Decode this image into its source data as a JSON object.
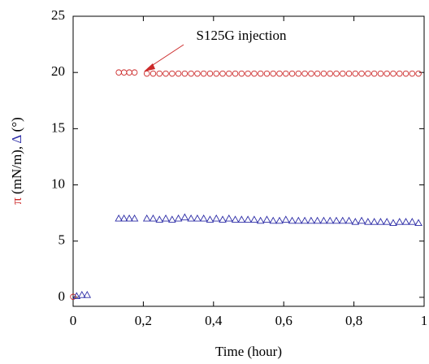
{
  "chart_data": {
    "type": "scatter",
    "xlabel": "Time (hour)",
    "ylabel": [
      "π",
      " (mN/m), ",
      "Δ",
      " (°)"
    ],
    "ylabel_colors": [
      "#cc2a2a",
      "#000000",
      "#2b2ba6",
      "#000000"
    ],
    "annotation": "S125G injection",
    "annotation_color": "#cc2a2a",
    "xlim": [
      0,
      1
    ],
    "ylim": [
      -0.8,
      25
    ],
    "xticks": [
      {
        "value": 0,
        "label": "0"
      },
      {
        "value": 0.2,
        "label": "0,2"
      },
      {
        "value": 0.4,
        "label": "0,4"
      },
      {
        "value": 0.6,
        "label": "0,6"
      },
      {
        "value": 0.8,
        "label": "0,8"
      },
      {
        "value": 1,
        "label": "1"
      }
    ],
    "yticks": [
      0,
      5,
      10,
      15,
      20,
      25
    ],
    "series": [
      {
        "color": "#cc2a2a",
        "marker": "circle",
        "x": [
          0.0,
          0.13,
          0.145,
          0.16,
          0.175,
          0.21,
          0.228,
          0.246,
          0.264,
          0.282,
          0.3,
          0.318,
          0.336,
          0.354,
          0.372,
          0.39,
          0.408,
          0.426,
          0.444,
          0.462,
          0.48,
          0.498,
          0.516,
          0.534,
          0.552,
          0.57,
          0.588,
          0.606,
          0.624,
          0.642,
          0.66,
          0.678,
          0.696,
          0.714,
          0.732,
          0.75,
          0.768,
          0.786,
          0.804,
          0.822,
          0.84,
          0.858,
          0.876,
          0.894,
          0.912,
          0.93,
          0.948,
          0.966,
          0.984
        ],
        "values": [
          0.05,
          20,
          20,
          20,
          20,
          19.9,
          19.9,
          19.9,
          19.9,
          19.9,
          19.9,
          19.9,
          19.9,
          19.9,
          19.9,
          19.9,
          19.9,
          19.9,
          19.9,
          19.9,
          19.9,
          19.9,
          19.9,
          19.9,
          19.9,
          19.9,
          19.9,
          19.9,
          19.9,
          19.9,
          19.9,
          19.9,
          19.9,
          19.9,
          19.9,
          19.9,
          19.9,
          19.9,
          19.9,
          19.9,
          19.9,
          19.9,
          19.9,
          19.9,
          19.9,
          19.9,
          19.9,
          19.9,
          19.9
        ]
      },
      {
        "color": "#2b2ba6",
        "marker": "triangle",
        "x": [
          0.01,
          0.025,
          0.04,
          0.13,
          0.145,
          0.16,
          0.175,
          0.21,
          0.228,
          0.246,
          0.264,
          0.282,
          0.3,
          0.318,
          0.336,
          0.354,
          0.372,
          0.39,
          0.408,
          0.426,
          0.444,
          0.462,
          0.48,
          0.498,
          0.516,
          0.534,
          0.552,
          0.57,
          0.588,
          0.606,
          0.624,
          0.642,
          0.66,
          0.678,
          0.696,
          0.714,
          0.732,
          0.75,
          0.768,
          0.786,
          0.804,
          0.822,
          0.84,
          0.858,
          0.876,
          0.894,
          0.912,
          0.93,
          0.948,
          0.966,
          0.984
        ],
        "values": [
          0.1,
          0.2,
          0.2,
          7,
          7,
          7,
          7,
          7,
          7,
          6.9,
          7,
          6.9,
          7,
          7.1,
          7,
          7,
          7,
          6.9,
          7,
          6.9,
          7,
          6.9,
          6.9,
          6.9,
          6.9,
          6.8,
          6.9,
          6.8,
          6.8,
          6.9,
          6.8,
          6.8,
          6.8,
          6.8,
          6.8,
          6.8,
          6.8,
          6.8,
          6.8,
          6.8,
          6.7,
          6.8,
          6.7,
          6.7,
          6.7,
          6.7,
          6.6,
          6.7,
          6.7,
          6.7,
          6.6
        ]
      }
    ]
  }
}
